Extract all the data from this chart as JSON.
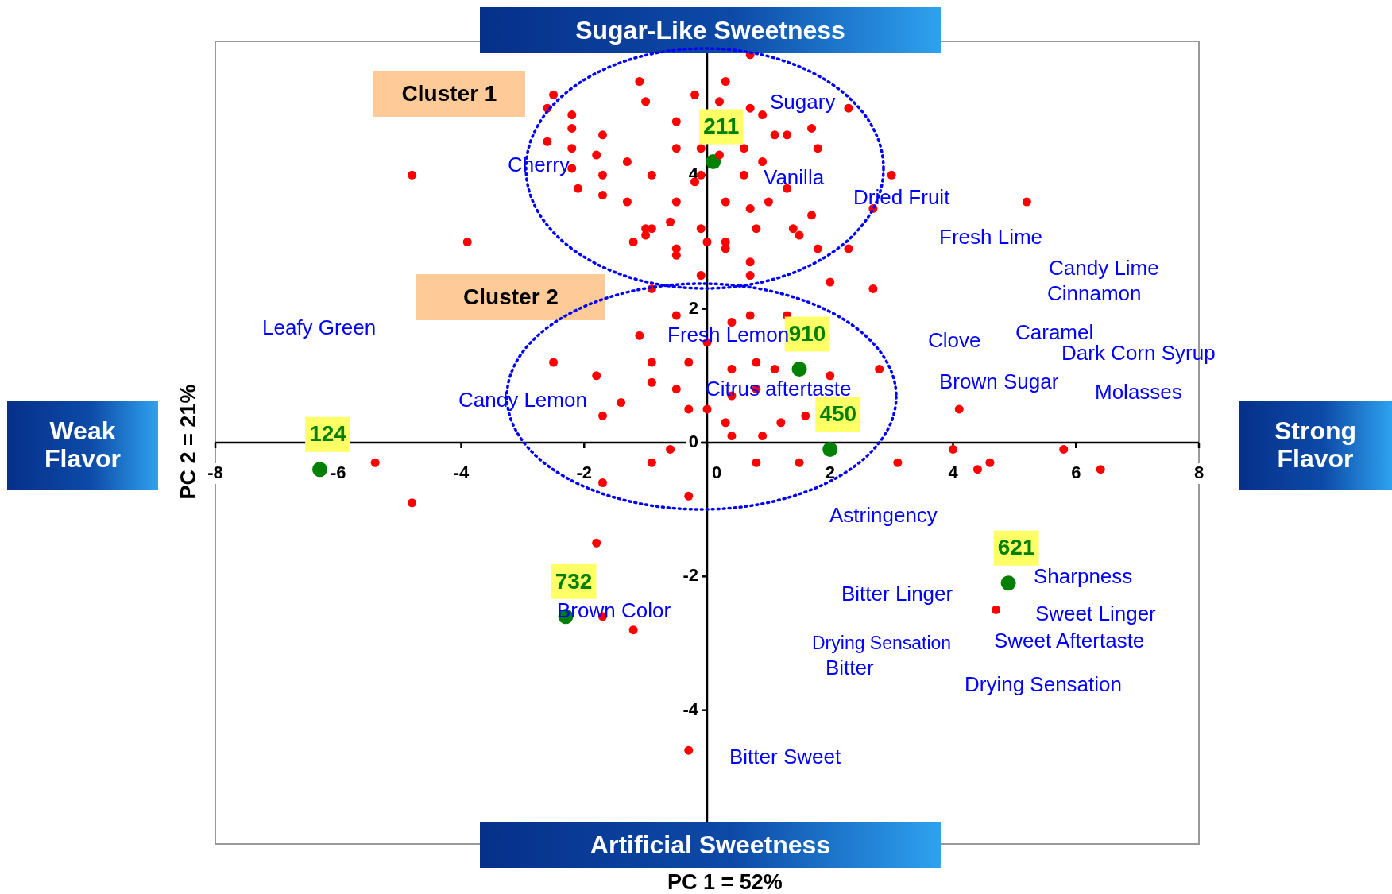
{
  "chart_data": {
    "type": "scatter",
    "xlabel": "PC 1 = 52%",
    "ylabel": "PC 2 = 21%",
    "xlim": [
      -8,
      8
    ],
    "ylim": [
      -6,
      6
    ],
    "xticks": [
      -8,
      -6,
      -4,
      -2,
      0,
      2,
      4,
      6,
      8
    ],
    "yticks": [
      -4,
      -2,
      0,
      2,
      4
    ],
    "marker": "circle",
    "series": [
      {
        "color": "#ff0000",
        "x": [
          0.7,
          -2.5,
          -2.6,
          -1.1,
          -1.0,
          -0.2,
          0.3,
          0.2,
          -2.2,
          0.7,
          0.9,
          2.3,
          -2.2,
          -2.6,
          -1.7,
          -0.5,
          -1.8,
          -1.3,
          -2.2,
          -2.2,
          -2.1,
          -1.7,
          -1.7,
          -1.3,
          -0.9,
          -0.5,
          -0.1,
          0.2,
          0.6,
          1.1,
          1.3,
          1.7,
          1.8,
          0.9,
          -0.1,
          -0.2,
          0.6,
          0.3,
          -0.5,
          -0.9,
          -1.0,
          -1.2,
          -1.0,
          -0.6,
          -0.5,
          -0.5,
          -0.1,
          0.0,
          0.3,
          0.3,
          0.7,
          1.0,
          1.3,
          0.8,
          1.4,
          1.5,
          1.7,
          1.8,
          2.3,
          2.7,
          3.0,
          0.7,
          0.7,
          -0.1,
          2.0,
          2.7,
          -0.9,
          -4.8,
          -3.9,
          5.2,
          -0.5,
          0.4,
          0.7,
          1.3,
          -1.1,
          0.0,
          -0.9,
          -0.3,
          0.4,
          0.8,
          1.1,
          2.0,
          2.8,
          -2.5,
          -1.8,
          -1.4,
          -0.9,
          -0.5,
          0.4,
          0.8,
          -1.7,
          -0.3,
          0.0,
          0.3,
          1.2,
          1.6,
          0.4,
          0.9,
          -0.6,
          -0.9,
          0.8,
          1.5,
          3.1,
          -1.7,
          -0.3,
          -5.4,
          -4.8,
          4.1,
          4.0,
          5.8,
          4.4,
          4.6,
          6.4,
          -1.8,
          -1.7,
          -1.2,
          4.7,
          -0.3
        ],
        "values": [
          5.8,
          5.2,
          5.0,
          5.4,
          5.1,
          5.2,
          5.4,
          5.1,
          4.9,
          5.0,
          4.9,
          5.0,
          4.7,
          4.5,
          4.6,
          4.8,
          4.3,
          4.2,
          4.4,
          4.1,
          3.8,
          4.0,
          3.7,
          3.6,
          4.0,
          4.4,
          4.4,
          4.3,
          4.4,
          4.6,
          4.6,
          4.7,
          4.4,
          4.2,
          4.0,
          3.9,
          4.0,
          3.6,
          3.6,
          3.2,
          3.1,
          3.0,
          3.2,
          3.3,
          2.9,
          2.8,
          3.2,
          3.0,
          3.0,
          2.9,
          3.5,
          3.6,
          3.8,
          3.2,
          3.2,
          3.1,
          3.4,
          2.9,
          2.9,
          3.5,
          4.0,
          2.7,
          2.5,
          2.5,
          2.4,
          2.3,
          2.3,
          4.0,
          3.0,
          3.6,
          1.9,
          1.8,
          1.9,
          1.9,
          1.6,
          1.5,
          1.2,
          1.2,
          1.1,
          1.2,
          1.1,
          1.0,
          1.1,
          1.2,
          1.0,
          0.6,
          0.9,
          0.8,
          0.7,
          0.8,
          0.4,
          0.5,
          0.5,
          0.3,
          0.3,
          0.4,
          0.1,
          0.1,
          -0.1,
          -0.3,
          -0.3,
          -0.3,
          -0.3,
          -0.6,
          -0.8,
          -0.3,
          -0.9,
          0.5,
          -0.1,
          -0.1,
          -0.4,
          -0.3,
          -0.4,
          -1.5,
          -2.6,
          -2.8,
          -2.5,
          -4.6
        ]
      },
      {
        "name": "124",
        "color": "#008000",
        "x": [
          -6.3
        ],
        "values": [
          -0.4
        ]
      },
      {
        "name": "732",
        "color": "#008000",
        "x": [
          -2.3
        ],
        "values": [
          -2.6
        ]
      },
      {
        "name": "211",
        "color": "#008000",
        "x": [
          0.1
        ],
        "values": [
          4.2
        ]
      },
      {
        "name": "910",
        "color": "#008000",
        "x": [
          1.5
        ],
        "values": [
          1.1
        ]
      },
      {
        "name": "450",
        "color": "#008000",
        "x": [
          2.0
        ],
        "values": [
          -0.1
        ]
      },
      {
        "name": "621",
        "color": "#008000",
        "x": [
          4.9
        ],
        "values": [
          -2.1
        ]
      }
    ],
    "annotations": [
      "Sugar-Like Sweetness",
      "Artificial Sweetness",
      "Weak Flavor",
      "Strong Flavor",
      "Cluster 1",
      "Cluster 2",
      "Sugary",
      "Cherry",
      "Vanilla",
      "Dried Fruit",
      "Fresh Lime",
      "Candy Lime",
      "Cinnamon",
      "Leafy Green",
      "Fresh Lemon",
      "Clove",
      "Caramel",
      "Dark Corn Syrup",
      "Brown Sugar",
      "Molasses",
      "Candy Lemon",
      "Citrus aftertaste",
      "Astringency",
      "Sharpness",
      "Bitter Linger",
      "Brown Color",
      "Sweet Linger",
      "Drying Sensation",
      "Sweet Aftertaste",
      "Bitter",
      "Drying Sensation",
      "Bitter Sweet"
    ]
  }
}
